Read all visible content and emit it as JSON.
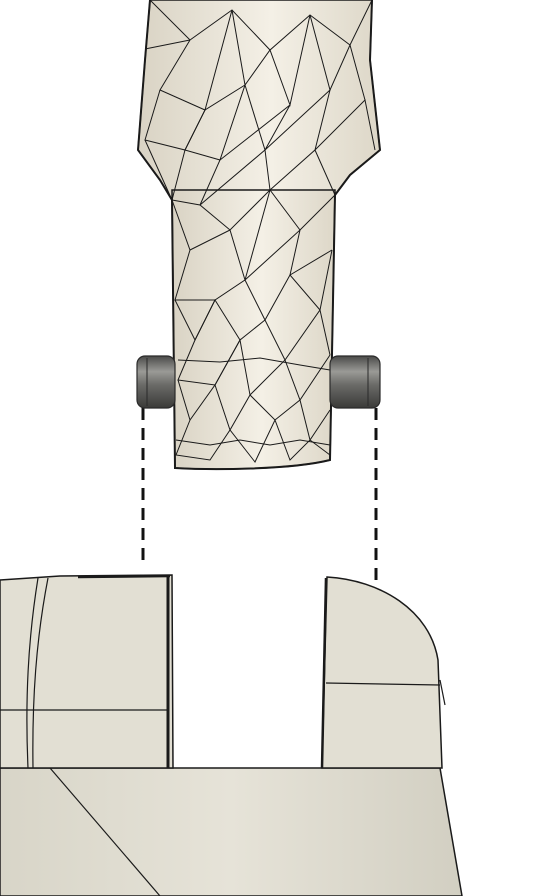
{
  "scene": {
    "view": "cad-assembly-exploded",
    "background_color": "#ffffff",
    "mesh_part": {
      "name": "mesh-arm",
      "fill_color": "#ede8dc",
      "edge_color": "#1a1a1a"
    },
    "pin": {
      "name": "hinge-pin",
      "fill_color": "#6e6e6c"
    },
    "base_part": {
      "name": "solid-base-clevis",
      "fill_color": "#dedbcf",
      "edge_color": "#1a1a1a"
    },
    "explode_lines": {
      "style": "dashed",
      "color": "#111111",
      "count": 2
    }
  }
}
